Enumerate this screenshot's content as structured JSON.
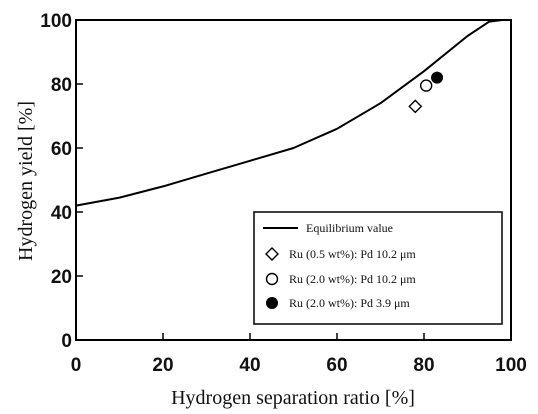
{
  "chart_data": {
    "type": "scatter",
    "xlabel": "Hydrogen separation ratio [%]",
    "ylabel": "Hydrogen yield [%]",
    "xlim": [
      0,
      100
    ],
    "ylim": [
      0,
      100
    ],
    "x_ticks": [
      "0",
      "20",
      "40",
      "60",
      "80",
      "100"
    ],
    "y_ticks": [
      "0",
      "20",
      "40",
      "60",
      "80",
      "100"
    ],
    "grid": false,
    "legend_position": "bottom-right",
    "series": [
      {
        "name": "Equilibrium value",
        "kind": "line",
        "color": "#000000",
        "x": [
          0,
          10,
          20,
          30,
          40,
          50,
          60,
          70,
          80,
          90,
          95,
          98
        ],
        "y": [
          42,
          44.5,
          48,
          52,
          56,
          60,
          66,
          74,
          84,
          95,
          99.5,
          100
        ]
      },
      {
        "name": "Ru (0.5 wt%): Pd 10.2 μm",
        "kind": "scatter",
        "marker": "open-diamond",
        "x": [
          78
        ],
        "y": [
          73
        ]
      },
      {
        "name": "Ru (2.0 wt%): Pd 10.2 μm",
        "kind": "scatter",
        "marker": "open-circle",
        "x": [
          80.5
        ],
        "y": [
          79.5
        ]
      },
      {
        "name": "Ru (2.0 wt%): Pd 3.9 μm",
        "kind": "scatter",
        "marker": "filled-circle",
        "x": [
          83
        ],
        "y": [
          82
        ]
      }
    ]
  }
}
